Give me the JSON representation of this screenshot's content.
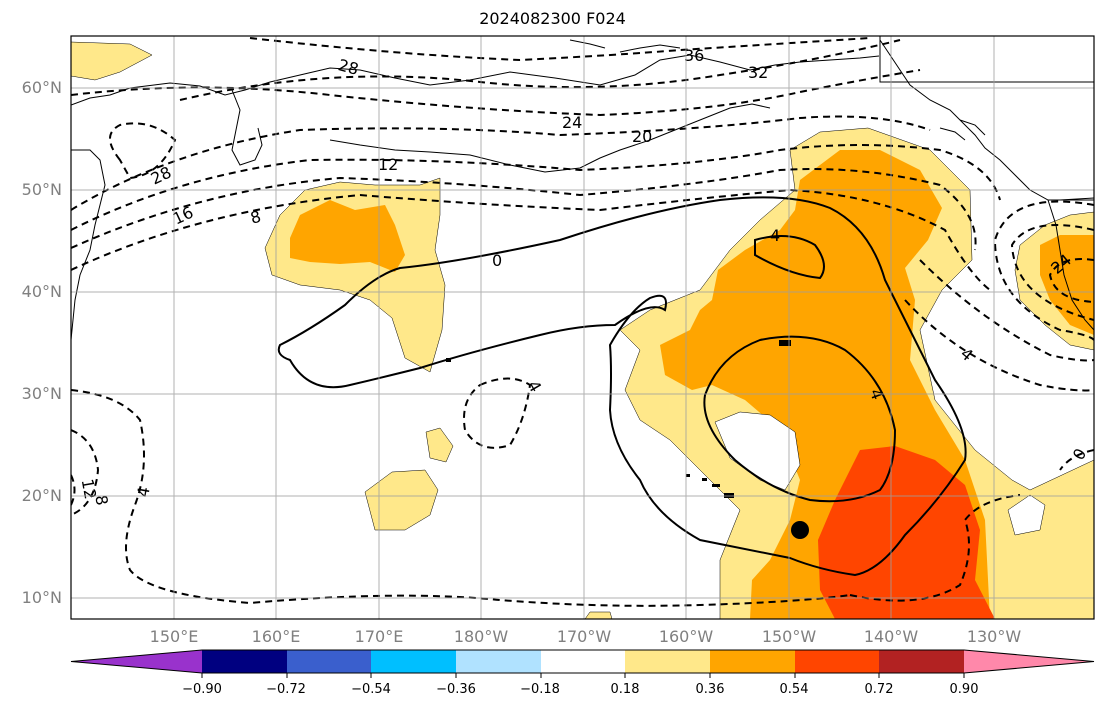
{
  "title": "2024082300 F024",
  "lat_labels": [
    "60°N",
    "50°N",
    "40°N",
    "30°N",
    "20°N",
    "10°N"
  ],
  "lon_labels": [
    "150°E",
    "160°E",
    "170°E",
    "180°W",
    "170°W",
    "160°W",
    "150°W",
    "140°W",
    "130°W"
  ],
  "contour_labels": {
    "c36": "36",
    "c32": "32",
    "c28a": "28",
    "c24a": "24",
    "c20": "20",
    "c28b": "28",
    "c16": "16",
    "c12": "12",
    "c8": "8",
    "c0a": "0",
    "c4a": "4",
    "c4b": "4",
    "c4c": "4",
    "c4d": "4",
    "c24b": "24",
    "c4e": "4",
    "c0b": "0",
    "c12b": "12",
    "c8b": "8"
  },
  "colorbar": {
    "ticks": [
      "−0.90",
      "−0.72",
      "−0.54",
      "−0.36",
      "−0.18",
      "0.18",
      "0.36",
      "0.54",
      "0.72",
      "0.90"
    ],
    "colors": {
      "below": "#9932cc",
      "b1": "#000080",
      "b2": "#3a5fcd",
      "b3": "#00bfff",
      "b4": "#b0e2ff",
      "b5": "#ffffff",
      "b6": "#ffe88a",
      "b7": "#ffa500",
      "b8": "#ff4500",
      "b9": "#b22222",
      "above": "#ff88aa"
    }
  },
  "colors": {
    "light": "#ffe88a",
    "orange": "#ffa500",
    "red": "#ff4500"
  }
}
